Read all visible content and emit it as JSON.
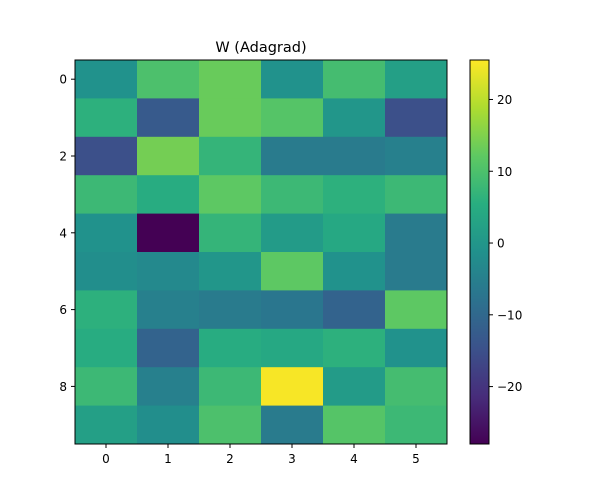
{
  "chart_data": {
    "type": "heatmap",
    "title": "W (Adagrad)",
    "xlabel": "",
    "ylabel": "",
    "colormap": "viridis",
    "vmin": -28,
    "vmax": 25.5,
    "x_ticks": [
      0,
      1,
      2,
      3,
      4,
      5
    ],
    "y_ticks": [
      0,
      2,
      4,
      6,
      8
    ],
    "colorbar_ticks": [
      20,
      10,
      0,
      -10,
      -20
    ],
    "colorbar_tick_labels": [
      "20",
      "10",
      "0",
      "−10",
      "−20"
    ],
    "values": [
      [
        -1,
        10,
        13,
        -1,
        9,
        2
      ],
      [
        6,
        -13,
        13,
        11,
        0,
        -15
      ],
      [
        -15,
        14,
        7,
        -6,
        -6,
        -5
      ],
      [
        8,
        5,
        12,
        8,
        6,
        8
      ],
      [
        -1,
        -28,
        7,
        1,
        4,
        -6
      ],
      [
        -2,
        -3,
        0,
        12,
        -1,
        -6
      ],
      [
        6,
        -5,
        -6,
        -7,
        -11,
        12
      ],
      [
        5,
        -11,
        5,
        4,
        6,
        -1
      ],
      [
        8,
        -5,
        8,
        25,
        1,
        9
      ],
      [
        2,
        -2,
        10,
        -6,
        11,
        8
      ]
    ]
  }
}
